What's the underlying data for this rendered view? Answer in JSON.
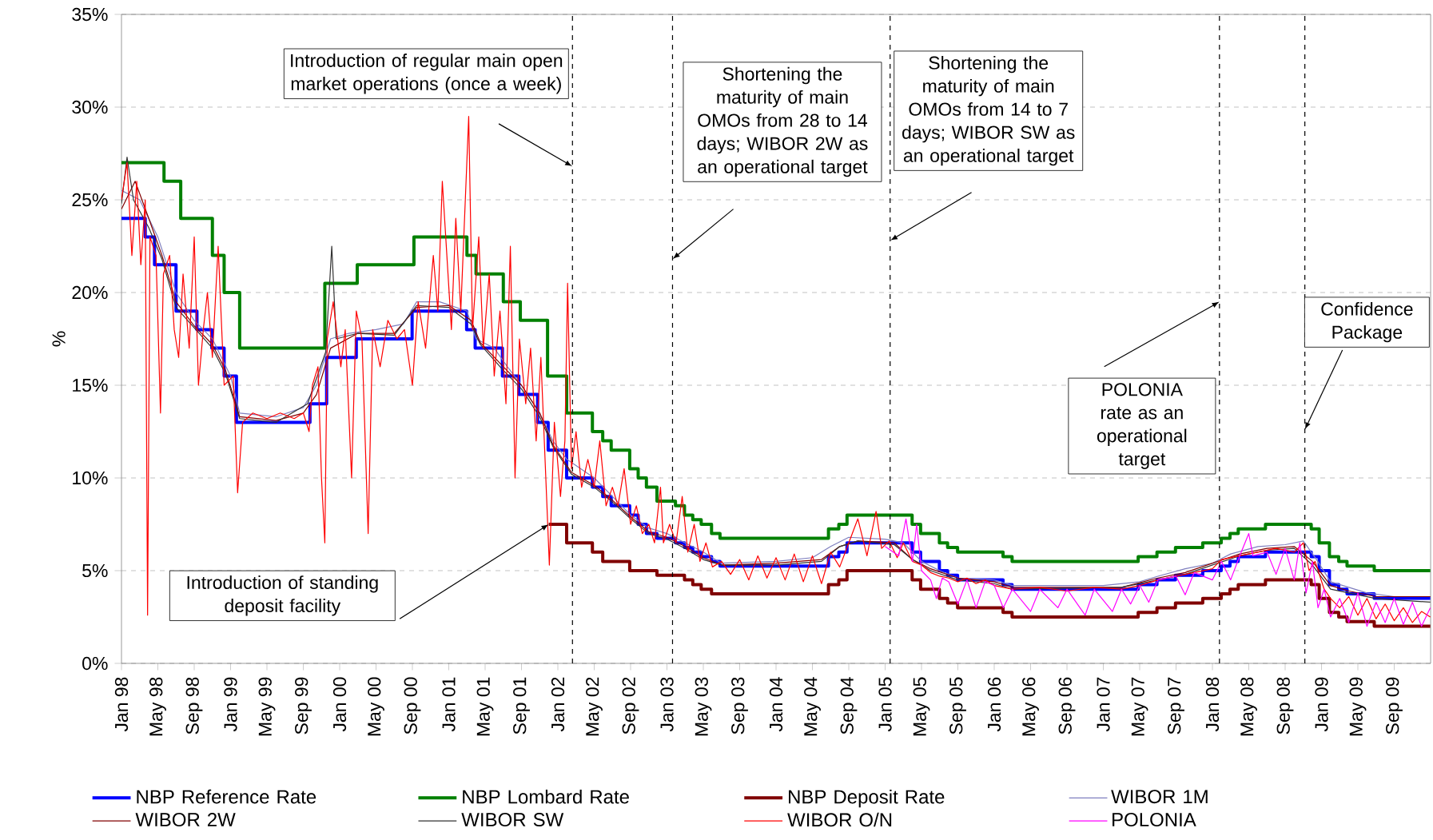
{
  "chart_data": {
    "type": "line",
    "ylabel": "%",
    "xlim": [
      "1998-01-01",
      "2010-01-01"
    ],
    "xticks": [
      {
        "value": "1998-01-01",
        "label": "Jan 98"
      },
      {
        "value": "1998-05-01",
        "label": "May 98"
      },
      {
        "value": "1998-09-01",
        "label": "Sep 98"
      },
      {
        "value": "1999-01-01",
        "label": "Jan 99"
      },
      {
        "value": "1999-05-01",
        "label": "May 99"
      },
      {
        "value": "1999-09-01",
        "label": "Sep 99"
      },
      {
        "value": "2000-01-01",
        "label": "Jan 00"
      },
      {
        "value": "2000-05-01",
        "label": "May 00"
      },
      {
        "value": "2000-09-01",
        "label": "Sep 00"
      },
      {
        "value": "2001-01-01",
        "label": "Jan 01"
      },
      {
        "value": "2001-05-01",
        "label": "May 01"
      },
      {
        "value": "2001-09-01",
        "label": "Sep 01"
      },
      {
        "value": "2002-01-01",
        "label": "Jan 02"
      },
      {
        "value": "2002-05-01",
        "label": "May 02"
      },
      {
        "value": "2002-09-01",
        "label": "Sep 02"
      },
      {
        "value": "2003-01-01",
        "label": "Jan 03"
      },
      {
        "value": "2003-05-01",
        "label": "May 03"
      },
      {
        "value": "2003-09-01",
        "label": "Sep 03"
      },
      {
        "value": "2004-01-01",
        "label": "Jan 04"
      },
      {
        "value": "2004-05-01",
        "label": "May 04"
      },
      {
        "value": "2004-09-01",
        "label": "Sep 04"
      },
      {
        "value": "2005-01-01",
        "label": "Jan 05"
      },
      {
        "value": "2005-05-01",
        "label": "May 05"
      },
      {
        "value": "2005-09-01",
        "label": "Sep 05"
      },
      {
        "value": "2006-01-01",
        "label": "Jan 06"
      },
      {
        "value": "2006-05-01",
        "label": "May 06"
      },
      {
        "value": "2006-09-01",
        "label": "Sep 06"
      },
      {
        "value": "2007-01-01",
        "label": "Jan 07"
      },
      {
        "value": "2007-05-01",
        "label": "May 07"
      },
      {
        "value": "2007-09-01",
        "label": "Sep 07"
      },
      {
        "value": "2008-01-01",
        "label": "Jan 08"
      },
      {
        "value": "2008-05-01",
        "label": "May 08"
      },
      {
        "value": "2008-09-01",
        "label": "Sep 08"
      },
      {
        "value": "2009-01-01",
        "label": "Jan 09"
      },
      {
        "value": "2009-05-01",
        "label": "May 09"
      },
      {
        "value": "2009-09-01",
        "label": "Sep 09"
      }
    ],
    "ylim": [
      0,
      35
    ],
    "yticks": [
      {
        "value": 0,
        "label": "0%"
      },
      {
        "value": 5,
        "label": "5%"
      },
      {
        "value": 10,
        "label": "10%"
      },
      {
        "value": 15,
        "label": "15%"
      },
      {
        "value": 20,
        "label": "20%"
      },
      {
        "value": 25,
        "label": "25%"
      },
      {
        "value": 30,
        "label": "30%"
      },
      {
        "value": 35,
        "label": "35%"
      }
    ],
    "grid": "y",
    "legend": "bottom",
    "series": [
      {
        "name": "NBP Reference Rate",
        "type": "step",
        "color": "#0000ff",
        "x": [
          "1998-01-01",
          "1998-03-20",
          "1998-04-20",
          "1998-07-01",
          "1998-09-10",
          "1998-10-30",
          "1998-12-10",
          "1999-01-21",
          "1999-09-23",
          "1999-11-18",
          "2000-02-25",
          "2000-08-31",
          "2001-02-28",
          "2001-03-29",
          "2001-06-28",
          "2001-08-23",
          "2001-10-25",
          "2001-11-29",
          "2002-01-31",
          "2002-04-25",
          "2002-05-30",
          "2002-06-27",
          "2002-08-29",
          "2002-09-26",
          "2002-10-24",
          "2002-11-28",
          "2003-01-30",
          "2003-02-27",
          "2003-03-27",
          "2003-04-24",
          "2003-05-29",
          "2003-06-26",
          "2004-06-24",
          "2004-07-29",
          "2004-08-26",
          "2005-03-31",
          "2005-04-28",
          "2005-06-30",
          "2005-07-28",
          "2005-08-31",
          "2006-01-31",
          "2006-02-28",
          "2007-04-26",
          "2007-06-28",
          "2007-08-30",
          "2007-11-29",
          "2008-01-31",
          "2008-02-28",
          "2008-03-27",
          "2008-06-26",
          "2008-11-27",
          "2008-12-24",
          "2009-01-28",
          "2009-02-26",
          "2009-03-26",
          "2009-06-25",
          "2009-12-31"
        ],
        "values": [
          24,
          23,
          21.5,
          19,
          18,
          17,
          15.5,
          13,
          14,
          16.5,
          17.5,
          19,
          18,
          17,
          15.5,
          14.5,
          13,
          11.5,
          10,
          9.5,
          9,
          8.5,
          8,
          7.5,
          7,
          6.75,
          6.5,
          6.25,
          6,
          5.75,
          5.5,
          5.25,
          5.75,
          6,
          6.5,
          6,
          5.5,
          5,
          4.75,
          4.5,
          4.25,
          4,
          4.25,
          4.5,
          4.75,
          5,
          5.25,
          5.5,
          5.75,
          6,
          5.75,
          5,
          4.25,
          4,
          3.75,
          3.5,
          3.5
        ]
      },
      {
        "name": "NBP Lombard Rate",
        "type": "step",
        "color": "#008000",
        "x": [
          "1998-01-01",
          "1998-05-22",
          "1998-07-17",
          "1998-11-01",
          "1998-12-10",
          "1999-02-01",
          "1999-11-12",
          "2000-02-28",
          "2000-09-06",
          "2001-03-01",
          "2001-04-01",
          "2001-07-01",
          "2001-08-28",
          "2001-11-27",
          "2002-01-31",
          "2002-04-25",
          "2002-05-30",
          "2002-06-27",
          "2002-08-29",
          "2002-09-26",
          "2002-10-24",
          "2002-11-28",
          "2003-01-30",
          "2003-02-27",
          "2003-03-27",
          "2003-04-24",
          "2003-05-29",
          "2003-06-26",
          "2004-06-24",
          "2004-07-29",
          "2004-08-26",
          "2005-03-31",
          "2005-04-28",
          "2005-06-30",
          "2005-07-28",
          "2005-08-31",
          "2006-01-31",
          "2006-02-28",
          "2007-04-26",
          "2007-06-28",
          "2007-08-30",
          "2007-11-29",
          "2008-01-31",
          "2008-02-28",
          "2008-03-27",
          "2008-06-26",
          "2008-11-27",
          "2008-12-24",
          "2009-01-28",
          "2009-02-26",
          "2009-03-26",
          "2009-06-25",
          "2009-12-31"
        ],
        "values": [
          27,
          26,
          24,
          22,
          20,
          17,
          20.5,
          21.5,
          23,
          22,
          21,
          19.5,
          18.5,
          15.5,
          13.5,
          12.5,
          12,
          11.5,
          10.5,
          10,
          9.5,
          8.75,
          8.5,
          8,
          7.75,
          7.5,
          7,
          6.75,
          7.25,
          7.5,
          8,
          7.5,
          7,
          6.5,
          6.25,
          6,
          5.75,
          5.5,
          5.75,
          6,
          6.25,
          6.5,
          6.75,
          7,
          7.25,
          7.5,
          7.25,
          6.5,
          5.75,
          5.5,
          5.25,
          5,
          5
        ]
      },
      {
        "name": "NBP Deposit Rate",
        "type": "step",
        "color": "#800000",
        "x": [
          "2001-12-01",
          "2002-01-31",
          "2002-04-25",
          "2002-05-30",
          "2002-08-29",
          "2002-11-28",
          "2003-02-27",
          "2003-03-27",
          "2003-04-24",
          "2003-05-29",
          "2004-06-24",
          "2004-07-29",
          "2004-08-26",
          "2005-03-31",
          "2005-04-28",
          "2005-06-30",
          "2005-07-28",
          "2005-08-31",
          "2006-01-31",
          "2006-02-28",
          "2007-04-26",
          "2007-06-28",
          "2007-08-30",
          "2007-11-29",
          "2008-01-31",
          "2008-02-28",
          "2008-03-27",
          "2008-06-26",
          "2008-11-27",
          "2008-12-24",
          "2009-01-28",
          "2009-02-26",
          "2009-03-26",
          "2009-06-25",
          "2009-12-31"
        ],
        "values": [
          7.5,
          6.5,
          6,
          5.5,
          5,
          4.75,
          4.5,
          4.25,
          4,
          3.75,
          4.25,
          4.5,
          5,
          4.5,
          4,
          3.5,
          3.25,
          3,
          2.75,
          2.5,
          2.75,
          3,
          3.25,
          3.5,
          3.75,
          4,
          4.25,
          4.5,
          4.25,
          3.5,
          2.75,
          2.5,
          2.25,
          2,
          2
        ]
      },
      {
        "name": "WIBOR 1M",
        "color": "#7f7fbf",
        "x": [
          "1998-01-01",
          "1998-03-01",
          "1998-05-01",
          "1998-07-01",
          "1998-09-01",
          "1998-11-01",
          "1999-01-01",
          "1999-02-01",
          "1999-06-01",
          "1999-09-01",
          "1999-10-15",
          "1999-12-01",
          "2000-02-01",
          "2000-05-01",
          "2000-08-01",
          "2000-09-15",
          "2000-12-01",
          "2001-03-01",
          "2001-04-01",
          "2001-06-01",
          "2001-07-15",
          "2001-09-01",
          "2001-11-01",
          "2001-12-15",
          "2002-02-01",
          "2002-05-01",
          "2002-07-01",
          "2002-09-01",
          "2002-11-01",
          "2003-01-01",
          "2003-03-01",
          "2003-05-01",
          "2003-07-01",
          "2004-01-01",
          "2004-05-01",
          "2004-07-01",
          "2004-09-01",
          "2005-01-01",
          "2005-03-01",
          "2005-05-01",
          "2005-07-01",
          "2005-09-01",
          "2006-01-01",
          "2006-03-01",
          "2007-01-01",
          "2007-05-01",
          "2007-07-01",
          "2007-10-01",
          "2008-01-01",
          "2008-03-01",
          "2008-06-01",
          "2008-09-01",
          "2008-11-01",
          "2008-12-15",
          "2009-02-01",
          "2009-04-01",
          "2009-06-01",
          "2009-09-01",
          "2009-12-31"
        ],
        "values": [
          25.5,
          25,
          23,
          20,
          18.5,
          17.5,
          15.5,
          13.5,
          13.3,
          13.8,
          15,
          17.5,
          17.8,
          18,
          18.3,
          19.5,
          19.5,
          19,
          17.5,
          17,
          16,
          15,
          13.5,
          12,
          11,
          10,
          9,
          8,
          7.3,
          7,
          6.5,
          6,
          5.4,
          5.5,
          5.7,
          6.3,
          6.8,
          6.7,
          6.5,
          5.5,
          5,
          4.6,
          4.5,
          4.2,
          4.2,
          4.4,
          4.7,
          5.1,
          5.4,
          5.9,
          6.3,
          6.4,
          6.6,
          5.6,
          4.4,
          4.1,
          3.8,
          3.6,
          3.6
        ]
      },
      {
        "name": "WIBOR 2W",
        "color": "#800000",
        "x": [
          "1998-01-01",
          "1998-02-15",
          "1998-04-01",
          "1998-05-15",
          "1998-07-01",
          "1998-09-01",
          "1998-11-01",
          "1998-12-15",
          "1999-02-01",
          "1999-06-01",
          "1999-09-01",
          "1999-10-15",
          "1999-12-01",
          "2000-03-01",
          "2000-07-01",
          "2000-09-15",
          "2001-01-01",
          "2001-03-15",
          "2001-04-15",
          "2001-07-01",
          "2001-09-01",
          "2001-11-01",
          "2001-12-15",
          "2002-02-15",
          "2002-05-01",
          "2002-07-01",
          "2002-09-01",
          "2002-11-01",
          "2003-01-01",
          "2003-03-01",
          "2003-05-01",
          "2003-07-01",
          "2004-01-01",
          "2004-06-01",
          "2004-08-01",
          "2004-10-01",
          "2005-02-01",
          "2005-04-01",
          "2005-06-01",
          "2005-09-01",
          "2006-01-01",
          "2006-03-01",
          "2007-03-01",
          "2007-07-01",
          "2007-10-01",
          "2008-01-01",
          "2008-04-01",
          "2008-07-01",
          "2008-10-01",
          "2008-12-01",
          "2009-02-01",
          "2009-04-01",
          "2009-07-01",
          "2009-12-31"
        ],
        "values": [
          24.5,
          26,
          24,
          22,
          19.5,
          18.2,
          17.2,
          15.8,
          13.3,
          13.1,
          13.5,
          14.5,
          17,
          17.8,
          17.8,
          19.2,
          19.3,
          18.5,
          17.3,
          16,
          15,
          13.5,
          11.8,
          10.3,
          9.6,
          8.8,
          7.9,
          7.1,
          6.8,
          6.3,
          5.7,
          5.3,
          5.4,
          5.6,
          6.3,
          6.6,
          6.5,
          5.6,
          5.1,
          4.6,
          4.4,
          4.1,
          4.1,
          4.6,
          4.9,
          5.4,
          5.9,
          6.2,
          6.3,
          5.5,
          4.2,
          3.9,
          3.6,
          3.6
        ]
      },
      {
        "name": "WIBOR SW",
        "color": "#333333",
        "x": [
          "1998-01-01",
          "1998-01-20",
          "1998-02-10",
          "1998-04-01",
          "1998-05-15",
          "1998-07-01",
          "1998-09-01",
          "1998-11-01",
          "1998-12-15",
          "1999-02-01",
          "1999-06-01",
          "1999-09-15",
          "1999-11-15",
          "1999-12-05",
          "1999-12-20",
          "2000-03-01",
          "2000-07-01",
          "2000-09-15",
          "2001-01-01",
          "2001-03-15",
          "2001-04-15",
          "2001-07-01",
          "2001-09-01",
          "2001-11-01",
          "2001-12-15",
          "2002-02-15",
          "2002-05-01",
          "2002-07-01",
          "2002-09-01",
          "2002-11-01",
          "2003-01-01",
          "2003-03-01",
          "2003-05-01",
          "2003-07-01",
          "2004-01-01",
          "2004-06-01",
          "2004-08-01",
          "2004-10-01",
          "2005-02-01",
          "2005-04-01",
          "2005-06-01",
          "2005-09-01",
          "2006-01-01",
          "2006-03-01",
          "2007-03-01",
          "2007-07-01",
          "2007-10-01",
          "2008-01-01",
          "2008-04-01",
          "2008-07-01",
          "2008-10-01",
          "2008-12-01",
          "2009-02-01",
          "2009-04-01",
          "2009-07-01",
          "2009-12-31"
        ],
        "values": [
          24.8,
          27.3,
          25,
          23.5,
          21.8,
          19.2,
          18.1,
          17,
          15.6,
          13.2,
          13,
          14,
          16.8,
          22.5,
          17.5,
          17.8,
          17.7,
          19.3,
          19.2,
          18.3,
          17.2,
          15.8,
          14.8,
          13.3,
          11.7,
          10.2,
          9.5,
          8.7,
          7.8,
          7,
          6.7,
          6.2,
          5.6,
          5.3,
          5.3,
          5.5,
          6.3,
          6.6,
          6.4,
          5.6,
          5,
          4.5,
          4.3,
          4,
          4.1,
          4.5,
          4.8,
          5.3,
          5.8,
          6.1,
          6.2,
          5.3,
          4,
          3.8,
          3.5,
          3.3
        ]
      },
      {
        "name": "WIBOR O/N",
        "color": "#ff0000",
        "x": [
          "1998-01-01",
          "1998-01-20",
          "1998-02-05",
          "1998-02-20",
          "1998-03-05",
          "1998-03-20",
          "1998-03-28",
          "1998-04-05",
          "1998-04-25",
          "1998-05-10",
          "1998-05-20",
          "1998-06-10",
          "1998-06-25",
          "1998-07-10",
          "1998-07-25",
          "1998-08-15",
          "1998-09-01",
          "1998-09-15",
          "1998-10-01",
          "1998-10-15",
          "1998-11-01",
          "1998-11-20",
          "1998-12-10",
          "1999-01-10",
          "1999-01-25",
          "1999-02-10",
          "1999-03-15",
          "1999-05-01",
          "1999-06-15",
          "1999-08-01",
          "1999-09-01",
          "1999-09-20",
          "1999-10-01",
          "1999-10-20",
          "1999-11-01",
          "1999-11-12",
          "1999-11-20",
          "1999-12-10",
          "2000-01-05",
          "2000-01-20",
          "2000-02-10",
          "2000-02-25",
          "2000-03-15",
          "2000-04-05",
          "2000-04-20",
          "2000-05-15",
          "2000-06-10",
          "2000-07-10",
          "2000-08-05",
          "2000-09-01",
          "2000-09-20",
          "2000-10-15",
          "2000-11-10",
          "2000-11-25",
          "2000-12-10",
          "2001-01-10",
          "2001-01-25",
          "2001-02-10",
          "2001-03-07",
          "2001-03-20",
          "2001-04-10",
          "2001-04-25",
          "2001-05-15",
          "2001-06-01",
          "2001-06-20",
          "2001-07-10",
          "2001-07-25",
          "2001-08-10",
          "2001-08-25",
          "2001-09-15",
          "2001-10-01",
          "2001-10-20",
          "2001-11-05",
          "2001-11-20",
          "2001-12-03",
          "2001-12-20",
          "2002-01-10",
          "2002-01-25",
          "2002-02-03",
          "2002-02-15",
          "2002-03-01",
          "2002-03-20",
          "2002-04-10",
          "2002-05-01",
          "2002-05-20",
          "2002-06-10",
          "2002-07-01",
          "2002-07-20",
          "2002-08-10",
          "2002-09-01",
          "2002-09-20",
          "2002-10-10",
          "2002-11-01",
          "2002-11-20",
          "2002-12-10",
          "2002-12-20",
          "2003-01-10",
          "2003-02-01",
          "2003-02-20",
          "2003-03-10",
          "2003-04-01",
          "2003-04-20",
          "2003-05-10",
          "2003-06-01",
          "2003-07-01",
          "2003-08-01",
          "2003-09-01",
          "2003-10-01",
          "2003-11-01",
          "2003-12-01",
          "2004-01-01",
          "2004-02-01",
          "2004-03-01",
          "2004-04-01",
          "2004-05-01",
          "2004-06-01",
          "2004-07-01",
          "2004-08-01",
          "2004-09-01",
          "2004-10-01",
          "2004-11-01",
          "2004-12-01",
          "2004-12-20",
          "2005-01-15",
          "2005-02-10",
          "2005-03-01",
          "2005-04-01",
          "2005-05-01",
          "2005-06-01",
          "2005-07-01",
          "2005-08-01",
          "2005-09-01",
          "2005-10-01",
          "2005-11-01",
          "2005-12-01",
          "2006-01-01",
          "2006-03-01",
          "2006-06-01",
          "2006-09-01",
          "2006-12-01",
          "2007-03-01",
          "2007-05-01",
          "2007-07-01",
          "2007-09-01",
          "2007-11-01",
          "2008-01-01",
          "2008-02-01",
          "2008-04-01",
          "2008-06-01",
          "2008-08-01",
          "2008-10-01",
          "2008-11-01",
          "2008-11-20",
          "2008-12-10",
          "2009-01-10",
          "2009-02-01",
          "2009-03-01",
          "2009-04-01",
          "2009-05-01",
          "2009-06-01",
          "2009-07-01",
          "2009-08-01",
          "2009-09-01",
          "2009-10-01",
          "2009-11-01",
          "2009-12-01",
          "2009-12-31"
        ],
        "values": [
          25,
          27,
          22,
          26,
          21.5,
          25,
          2.6,
          23,
          22,
          13.5,
          21,
          22,
          18,
          16.5,
          21,
          17,
          23,
          15,
          18,
          20,
          16.5,
          22.5,
          15,
          15.5,
          9.2,
          13,
          13.5,
          13.2,
          13.5,
          13.2,
          13.5,
          12.5,
          15,
          16,
          10,
          6.5,
          17.5,
          19.5,
          16,
          18,
          10,
          19,
          17.5,
          7,
          18,
          16,
          18.5,
          17.5,
          18,
          15,
          19.5,
          17,
          22,
          19,
          26,
          18,
          24,
          19,
          29.5,
          18,
          23,
          17,
          21,
          15.5,
          19,
          14,
          22.5,
          10,
          17.5,
          14,
          17,
          12,
          16.5,
          10.5,
          5.3,
          13,
          9,
          12,
          20.5,
          10.5,
          12.5,
          9.5,
          11,
          9.5,
          12,
          8.5,
          9.5,
          8.5,
          10.5,
          7.5,
          8.5,
          7,
          7.5,
          6.5,
          9.5,
          6.5,
          7.5,
          6.5,
          9,
          6,
          7.5,
          5.5,
          6.5,
          5.2,
          5.5,
          4.8,
          5.6,
          4.5,
          5.8,
          4.6,
          5.7,
          4.5,
          5.9,
          4.4,
          5.8,
          4.3,
          6,
          5.2,
          6.5,
          7.8,
          5.8,
          8.2,
          6.2,
          6.6,
          5.7,
          6.5,
          5.5,
          5.3,
          4.9,
          4.7,
          4.6,
          4.4,
          4.6,
          4.3,
          4.5,
          4.2,
          4,
          4.1,
          3.9,
          4.1,
          4,
          4.2,
          4.5,
          4.7,
          4.9,
          5.1,
          5.6,
          5.8,
          6,
          6.2,
          6,
          6.5,
          5,
          5.5,
          4,
          3.5,
          3,
          3.6,
          2.6,
          3.5,
          2.4,
          3.2,
          2.3,
          3,
          2.2,
          2.8,
          2.5
        ]
      },
      {
        "name": "POLONIA",
        "color": "#ff00ff",
        "x": [
          "2005-01-01",
          "2005-02-15",
          "2005-03-10",
          "2005-04-01",
          "2005-04-15",
          "2005-05-01",
          "2005-06-01",
          "2005-06-20",
          "2005-07-10",
          "2005-08-01",
          "2005-09-01",
          "2005-10-01",
          "2005-11-01",
          "2005-12-01",
          "2006-01-01",
          "2006-02-01",
          "2006-03-01",
          "2006-05-01",
          "2006-06-01",
          "2006-08-01",
          "2006-09-01",
          "2006-11-01",
          "2006-12-01",
          "2007-02-01",
          "2007-03-01",
          "2007-04-01",
          "2007-05-01",
          "2007-06-01",
          "2007-07-01",
          "2007-09-01",
          "2007-10-01",
          "2007-11-01",
          "2008-01-01",
          "2008-02-01",
          "2008-03-01",
          "2008-04-01",
          "2008-05-01",
          "2008-05-15",
          "2008-07-01",
          "2008-08-01",
          "2008-09-01",
          "2008-10-01",
          "2008-10-20",
          "2008-11-10",
          "2008-12-01",
          "2008-12-20",
          "2009-01-10",
          "2009-02-01",
          "2009-03-01",
          "2009-04-01",
          "2009-05-01",
          "2009-06-01",
          "2009-07-01",
          "2009-08-01",
          "2009-09-01",
          "2009-10-01",
          "2009-11-01",
          "2009-12-01",
          "2009-12-31"
        ],
        "values": [
          6.3,
          5.8,
          7.8,
          5.5,
          7.5,
          5,
          4.5,
          3.5,
          4.6,
          4.4,
          3.2,
          4.5,
          3,
          4.4,
          4.2,
          3,
          4,
          2.8,
          4,
          3,
          4,
          2.6,
          4,
          2.8,
          4,
          3.2,
          4.2,
          3.3,
          4.5,
          4.7,
          3.7,
          4.9,
          4.5,
          5.5,
          4.5,
          5.8,
          7,
          5.8,
          6,
          4.8,
          6.2,
          4.5,
          6.5,
          3.8,
          5.5,
          3,
          4,
          2.5,
          3.5,
          2.2,
          3.8,
          2,
          3.3,
          2.2,
          3.5,
          2.1,
          3.3,
          2,
          3
        ]
      }
    ],
    "ref_lines": [
      {
        "axis": "x",
        "value": "2002-02-18",
        "color": "#000000",
        "line_style": "dashed",
        "label": "Introduction of regular main open market operations (once a week)"
      },
      {
        "axis": "x",
        "value": "2003-01-20",
        "color": "#000000",
        "line_style": "dashed",
        "label": "Shortening the maturity of main OMOs from 28 to 14 days; WIBOR 2W as an operational target"
      },
      {
        "axis": "x",
        "value": "2005-01-18",
        "color": "#000000",
        "line_style": "dashed",
        "label": "Shortening the maturity of main OMOs from 14 to 7 days; WIBOR SW as an operational target"
      },
      {
        "axis": "x",
        "value": "2008-01-25",
        "color": "#000000",
        "line_style": "dashed",
        "label": "POLONIA rate as an operational target"
      },
      {
        "axis": "x",
        "value": "2008-11-06",
        "color": "#000000",
        "line_style": "dashed",
        "label": "Confidence Package"
      }
    ],
    "annotations": [
      {
        "text": "Introduction of standing deposit facility",
        "x": "2001-12-01",
        "y": 7.5
      }
    ]
  }
}
